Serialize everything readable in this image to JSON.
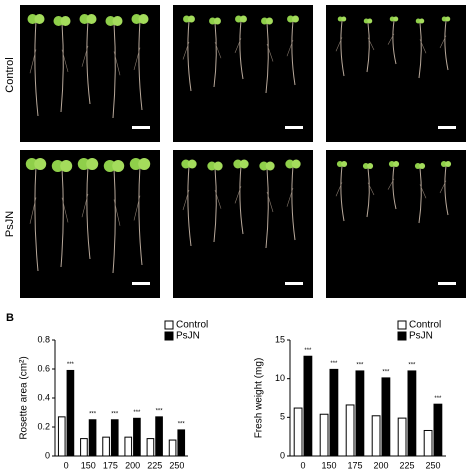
{
  "row_labels": [
    "Control",
    "PsJN"
  ],
  "panel_label": "B",
  "chart_data": [
    {
      "type": "bar",
      "ylabel": "Rosette area (cm²)",
      "categories": [
        "0",
        "150",
        "175",
        "200",
        "225",
        "250"
      ],
      "series": [
        {
          "name": "Control",
          "color": "#ffffff",
          "values": [
            0.27,
            0.12,
            0.13,
            0.13,
            0.12,
            0.11
          ]
        },
        {
          "name": "PsJN",
          "color": "#000000",
          "values": [
            0.59,
            0.25,
            0.25,
            0.26,
            0.27,
            0.18
          ],
          "significance": [
            "***",
            "***",
            "***",
            "***",
            "***",
            "***"
          ]
        }
      ],
      "ylim": [
        0,
        0.8
      ],
      "yticks": [
        0,
        0.2,
        0.4,
        0.6,
        0.8
      ],
      "legend": "upper right"
    },
    {
      "type": "bar",
      "ylabel": "Fresh weight (mg)",
      "categories": [
        "0",
        "150",
        "175",
        "200",
        "225",
        "250"
      ],
      "series": [
        {
          "name": "Control",
          "color": "#ffffff",
          "values": [
            6.2,
            5.4,
            6.6,
            5.2,
            4.9,
            3.3
          ]
        },
        {
          "name": "PsJN",
          "color": "#000000",
          "values": [
            12.9,
            11.2,
            11.0,
            10.1,
            11.0,
            6.7
          ],
          "significance": [
            "***",
            "***",
            "***",
            "***",
            "***",
            "***"
          ]
        }
      ],
      "ylim": [
        0,
        15
      ],
      "yticks": [
        0,
        5,
        10,
        15
      ],
      "legend": "upper right"
    }
  ]
}
